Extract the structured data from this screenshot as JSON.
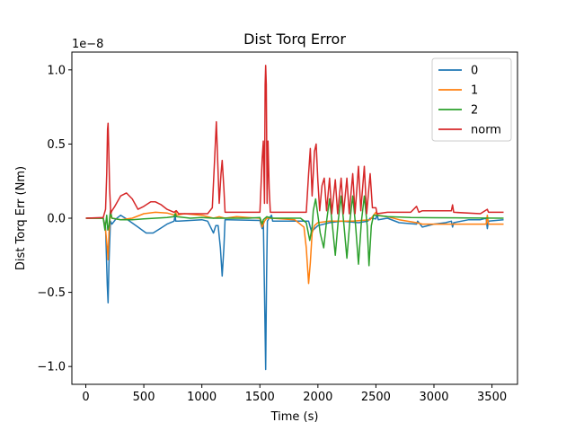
{
  "chart_data": {
    "type": "line",
    "title": "Dist Torq Error",
    "xlabel": "Time (s)",
    "ylabel": "Dist Torq Err (Nm)",
    "y_multiplier": "1e−8",
    "xlim": [
      -120,
      3720
    ],
    "ylim": [
      -1.12,
      1.12
    ],
    "xticks": [
      0,
      500,
      1000,
      1500,
      2000,
      2500,
      3000,
      3500
    ],
    "xtick_labels": [
      "0",
      "500",
      "1000",
      "1500",
      "2000",
      "2500",
      "3000",
      "3500"
    ],
    "yticks": [
      -1.0,
      -0.5,
      0.0,
      0.5,
      1.0
    ],
    "ytick_labels": [
      "−1.0",
      "−0.5",
      "0.0",
      "0.5",
      "1.0"
    ],
    "legend_position": "top-right",
    "grid": false,
    "series": [
      {
        "name": "0",
        "color": "#1f77b4",
        "points": [
          [
            0,
            0
          ],
          [
            150,
            0
          ],
          [
            170,
            -0.06
          ],
          [
            185,
            -0.45
          ],
          [
            192,
            -0.57
          ],
          [
            200,
            -0.3
          ],
          [
            212,
            -0.02
          ],
          [
            225,
            -0.04
          ],
          [
            260,
            -0.005
          ],
          [
            300,
            0.02
          ],
          [
            350,
            -0.005
          ],
          [
            450,
            -0.06
          ],
          [
            520,
            -0.1
          ],
          [
            580,
            -0.1
          ],
          [
            640,
            -0.07
          ],
          [
            700,
            -0.04
          ],
          [
            760,
            -0.02
          ],
          [
            770,
            0.02
          ],
          [
            775,
            -0.02
          ],
          [
            800,
            -0.02
          ],
          [
            1000,
            -0.01
          ],
          [
            1050,
            -0.02
          ],
          [
            1100,
            -0.1
          ],
          [
            1120,
            -0.05
          ],
          [
            1140,
            -0.05
          ],
          [
            1160,
            -0.2
          ],
          [
            1175,
            -0.39
          ],
          [
            1190,
            -0.2
          ],
          [
            1200,
            -0.01
          ],
          [
            1500,
            -0.015
          ],
          [
            1520,
            -0.07
          ],
          [
            1530,
            -0.02
          ],
          [
            1540,
            -0.5
          ],
          [
            1550,
            -1.02
          ],
          [
            1558,
            -0.4
          ],
          [
            1565,
            -0.02
          ],
          [
            1580,
            0.0
          ],
          [
            1600,
            0.02
          ],
          [
            1610,
            -0.02
          ],
          [
            1900,
            -0.02
          ],
          [
            1920,
            -0.02
          ],
          [
            1945,
            -0.09
          ],
          [
            2000,
            -0.05
          ],
          [
            2100,
            -0.03
          ],
          [
            2200,
            -0.02
          ],
          [
            2350,
            -0.03
          ],
          [
            2430,
            -0.02
          ],
          [
            2450,
            0.0
          ],
          [
            2500,
            -0.005
          ],
          [
            2510,
            0.03
          ],
          [
            2520,
            -0.01
          ],
          [
            2600,
            0.0
          ],
          [
            2700,
            -0.03
          ],
          [
            2850,
            -0.04
          ],
          [
            2860,
            -0.02
          ],
          [
            2900,
            -0.06
          ],
          [
            3000,
            -0.04
          ],
          [
            3100,
            -0.03
          ],
          [
            3150,
            -0.02
          ],
          [
            3160,
            -0.06
          ],
          [
            3170,
            -0.03
          ],
          [
            3300,
            -0.01
          ],
          [
            3400,
            -0.01
          ],
          [
            3450,
            0.0
          ],
          [
            3460,
            -0.07
          ],
          [
            3470,
            -0.02
          ],
          [
            3600,
            -0.01
          ]
        ]
      },
      {
        "name": "1",
        "color": "#ff7f0e",
        "points": [
          [
            0,
            0
          ],
          [
            150,
            0
          ],
          [
            170,
            -0.08
          ],
          [
            185,
            -0.2
          ],
          [
            192,
            -0.28
          ],
          [
            200,
            -0.1
          ],
          [
            210,
            0.02
          ],
          [
            225,
            0.0
          ],
          [
            300,
            -0.01
          ],
          [
            400,
            0.0
          ],
          [
            500,
            0.03
          ],
          [
            600,
            0.04
          ],
          [
            700,
            0.035
          ],
          [
            770,
            0.02
          ],
          [
            775,
            0.05
          ],
          [
            780,
            0.02
          ],
          [
            850,
            0.03
          ],
          [
            1000,
            0.02
          ],
          [
            1100,
            0.0
          ],
          [
            1150,
            0.01
          ],
          [
            1200,
            0.0
          ],
          [
            1300,
            0.01
          ],
          [
            1400,
            0.005
          ],
          [
            1500,
            0.0
          ],
          [
            1520,
            -0.06
          ],
          [
            1540,
            -0.02
          ],
          [
            1560,
            0.0
          ],
          [
            1600,
            0.0
          ],
          [
            1800,
            -0.01
          ],
          [
            1880,
            -0.06
          ],
          [
            1900,
            -0.2
          ],
          [
            1920,
            -0.44
          ],
          [
            1935,
            -0.3
          ],
          [
            1950,
            -0.1
          ],
          [
            1970,
            -0.05
          ],
          [
            2000,
            -0.03
          ],
          [
            2100,
            -0.02
          ],
          [
            2300,
            -0.02
          ],
          [
            2450,
            -0.01
          ],
          [
            2480,
            0.02
          ],
          [
            2500,
            0.04
          ],
          [
            2510,
            0.02
          ],
          [
            2600,
            0.01
          ],
          [
            2700,
            -0.01
          ],
          [
            2850,
            -0.03
          ],
          [
            2900,
            -0.04
          ],
          [
            3000,
            -0.04
          ],
          [
            3200,
            -0.04
          ],
          [
            3450,
            -0.04
          ],
          [
            3460,
            0.02
          ],
          [
            3470,
            -0.04
          ],
          [
            3600,
            -0.04
          ]
        ]
      },
      {
        "name": "2",
        "color": "#2ca02c",
        "points": [
          [
            0,
            0
          ],
          [
            150,
            0
          ],
          [
            165,
            -0.08
          ],
          [
            180,
            0.02
          ],
          [
            190,
            -0.08
          ],
          [
            200,
            -0.05
          ],
          [
            212,
            0.05
          ],
          [
            225,
            0.0
          ],
          [
            300,
            -0.01
          ],
          [
            400,
            -0.01
          ],
          [
            500,
            -0.005
          ],
          [
            600,
            0.0
          ],
          [
            700,
            0.005
          ],
          [
            760,
            0.01
          ],
          [
            770,
            0.03
          ],
          [
            780,
            0.01
          ],
          [
            900,
            0.0
          ],
          [
            1000,
            0.005
          ],
          [
            1100,
            0.0
          ],
          [
            1200,
            0.0
          ],
          [
            1400,
            0.0
          ],
          [
            1500,
            0.005
          ],
          [
            1520,
            -0.04
          ],
          [
            1530,
            -0.01
          ],
          [
            1560,
            0.01
          ],
          [
            1600,
            0.0
          ],
          [
            1850,
            0.0
          ],
          [
            1900,
            -0.03
          ],
          [
            1930,
            -0.15
          ],
          [
            1950,
            -0.06
          ],
          [
            1960,
            0.05
          ],
          [
            1980,
            0.13
          ],
          [
            2000,
            0.02
          ],
          [
            2020,
            -0.1
          ],
          [
            2050,
            -0.2
          ],
          [
            2075,
            -0.02
          ],
          [
            2100,
            0.13
          ],
          [
            2125,
            -0.05
          ],
          [
            2150,
            -0.25
          ],
          [
            2175,
            -0.02
          ],
          [
            2200,
            0.15
          ],
          [
            2225,
            -0.05
          ],
          [
            2250,
            -0.27
          ],
          [
            2275,
            -0.02
          ],
          [
            2300,
            0.15
          ],
          [
            2325,
            -0.05
          ],
          [
            2350,
            -0.31
          ],
          [
            2375,
            -0.02
          ],
          [
            2400,
            0.15
          ],
          [
            2425,
            -0.05
          ],
          [
            2440,
            -0.32
          ],
          [
            2460,
            -0.05
          ],
          [
            2480,
            0.02
          ],
          [
            2500,
            0.02
          ],
          [
            2600,
            0.01
          ],
          [
            2800,
            0.005
          ],
          [
            3000,
            0.003
          ],
          [
            3300,
            0.002
          ],
          [
            3600,
            0.0
          ]
        ]
      },
      {
        "name": "norm",
        "color": "#d62728",
        "points": [
          [
            0,
            0
          ],
          [
            150,
            0.005
          ],
          [
            170,
            0.06
          ],
          [
            180,
            0.3
          ],
          [
            187,
            0.6
          ],
          [
            192,
            0.64
          ],
          [
            198,
            0.45
          ],
          [
            205,
            0.2
          ],
          [
            215,
            0.03
          ],
          [
            225,
            0.05
          ],
          [
            250,
            0.08
          ],
          [
            300,
            0.15
          ],
          [
            350,
            0.17
          ],
          [
            400,
            0.13
          ],
          [
            450,
            0.06
          ],
          [
            500,
            0.08
          ],
          [
            560,
            0.11
          ],
          [
            600,
            0.11
          ],
          [
            650,
            0.09
          ],
          [
            700,
            0.06
          ],
          [
            760,
            0.04
          ],
          [
            780,
            0.05
          ],
          [
            800,
            0.03
          ],
          [
            1050,
            0.03
          ],
          [
            1090,
            0.07
          ],
          [
            1110,
            0.4
          ],
          [
            1125,
            0.65
          ],
          [
            1140,
            0.3
          ],
          [
            1150,
            0.1
          ],
          [
            1165,
            0.3
          ],
          [
            1175,
            0.39
          ],
          [
            1190,
            0.2
          ],
          [
            1200,
            0.04
          ],
          [
            1500,
            0.04
          ],
          [
            1520,
            0.4
          ],
          [
            1530,
            0.52
          ],
          [
            1540,
            0.1
          ],
          [
            1545,
            0.9
          ],
          [
            1550,
            1.03
          ],
          [
            1555,
            0.9
          ],
          [
            1562,
            0.1
          ],
          [
            1570,
            0.52
          ],
          [
            1580,
            0.2
          ],
          [
            1590,
            0.04
          ],
          [
            1900,
            0.04
          ],
          [
            1920,
            0.3
          ],
          [
            1935,
            0.47
          ],
          [
            1950,
            0.15
          ],
          [
            1970,
            0.45
          ],
          [
            1985,
            0.5
          ],
          [
            2000,
            0.25
          ],
          [
            2015,
            0.05
          ],
          [
            2035,
            0.22
          ],
          [
            2055,
            0.27
          ],
          [
            2075,
            0.05
          ],
          [
            2100,
            0.27
          ],
          [
            2120,
            0.03
          ],
          [
            2150,
            0.26
          ],
          [
            2170,
            0.03
          ],
          [
            2200,
            0.27
          ],
          [
            2220,
            0.03
          ],
          [
            2250,
            0.27
          ],
          [
            2270,
            0.03
          ],
          [
            2300,
            0.3
          ],
          [
            2320,
            0.03
          ],
          [
            2350,
            0.35
          ],
          [
            2370,
            0.05
          ],
          [
            2400,
            0.35
          ],
          [
            2420,
            0.03
          ],
          [
            2450,
            0.3
          ],
          [
            2470,
            0.07
          ],
          [
            2500,
            0.07
          ],
          [
            2510,
            0.03
          ],
          [
            2600,
            0.04
          ],
          [
            2800,
            0.04
          ],
          [
            2850,
            0.08
          ],
          [
            2870,
            0.04
          ],
          [
            2900,
            0.05
          ],
          [
            3000,
            0.05
          ],
          [
            3150,
            0.05
          ],
          [
            3160,
            0.09
          ],
          [
            3170,
            0.04
          ],
          [
            3400,
            0.03
          ],
          [
            3460,
            0.06
          ],
          [
            3470,
            0.04
          ],
          [
            3600,
            0.04
          ]
        ]
      }
    ]
  }
}
